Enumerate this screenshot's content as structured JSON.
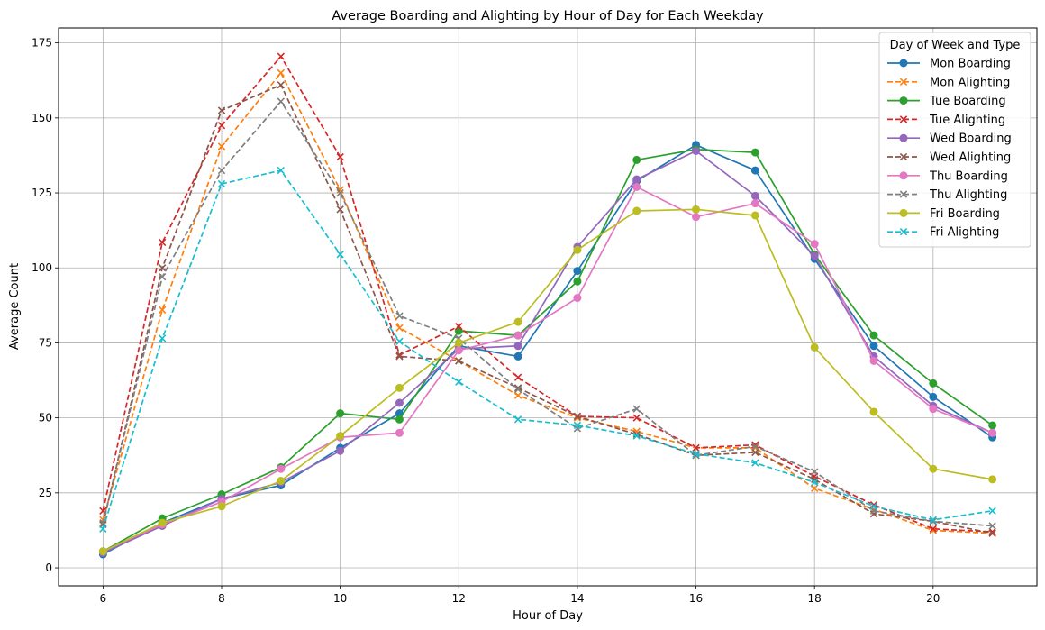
{
  "chart_data": {
    "type": "line",
    "title": "Average Boarding and Alighting by Hour of Day for Each Weekday",
    "xlabel": "Hour of Day",
    "ylabel": "Average Count",
    "xlim": [
      5.25,
      21.75
    ],
    "ylim": [
      -6,
      180
    ],
    "xticks": [
      6,
      8,
      10,
      12,
      14,
      16,
      18,
      20
    ],
    "yticks": [
      0,
      25,
      50,
      75,
      100,
      125,
      150,
      175
    ],
    "grid": true,
    "legend_title": "Day of Week and Type",
    "legend_position": "top-right",
    "x": [
      6,
      7,
      8,
      9,
      10,
      11,
      12,
      13,
      14,
      15,
      16,
      17,
      18,
      19,
      20,
      21
    ],
    "series": [
      {
        "name": "Mon Boarding",
        "color": "#1f77b4",
        "style": "solid",
        "marker": "circle",
        "values": [
          4.5,
          15,
          23,
          27.5,
          40,
          51.5,
          74,
          70.5,
          99,
          129,
          141,
          132.5,
          103,
          74,
          57,
          43.5
        ]
      },
      {
        "name": "Mon Alighting",
        "color": "#ff7f0e",
        "style": "dashed",
        "marker": "x",
        "values": [
          16,
          86,
          140.5,
          165,
          126,
          80,
          69,
          57.5,
          50,
          45.5,
          40,
          40,
          26.5,
          19.5,
          12.5,
          11.5
        ]
      },
      {
        "name": "Tue Boarding",
        "color": "#2ca02c",
        "style": "solid",
        "marker": "circle",
        "values": [
          5.5,
          16.5,
          24.5,
          33.5,
          51.5,
          49.5,
          79,
          77.5,
          95.5,
          136,
          139.5,
          138.5,
          104.5,
          77.5,
          61.5,
          47.5
        ]
      },
      {
        "name": "Tue Alighting",
        "color": "#d62728",
        "style": "dashed",
        "marker": "x",
        "values": [
          19,
          108.5,
          147.5,
          170.5,
          137,
          71,
          80.5,
          63.5,
          50.5,
          50,
          40,
          41,
          30.5,
          21,
          13,
          12
        ]
      },
      {
        "name": "Wed Boarding",
        "color": "#9467bd",
        "style": "solid",
        "marker": "circle",
        "values": [
          5,
          14,
          23,
          28.5,
          39,
          55,
          73,
          74,
          107,
          129.5,
          139,
          124,
          104,
          70.5,
          54,
          45
        ]
      },
      {
        "name": "Wed Alighting",
        "color": "#8c564b",
        "style": "dashed",
        "marker": "x",
        "values": [
          14.5,
          100,
          152.5,
          161,
          119.5,
          70.5,
          69,
          60,
          50.5,
          44.5,
          37.5,
          38.5,
          29.5,
          18,
          15.5,
          11.5
        ]
      },
      {
        "name": "Thu Boarding",
        "color": "#e377c2",
        "style": "solid",
        "marker": "circle",
        "values": [
          5.5,
          14.5,
          22,
          33,
          43.5,
          45,
          72.5,
          77.5,
          90,
          127,
          117,
          121.5,
          108,
          69,
          53,
          45
        ]
      },
      {
        "name": "Thu Alighting",
        "color": "#7f7f7f",
        "style": "dashed",
        "marker": "x",
        "values": [
          15,
          97,
          132.5,
          155.5,
          125,
          84,
          76.5,
          59.5,
          46.5,
          53,
          37.5,
          40.5,
          32,
          19,
          15.5,
          14
        ]
      },
      {
        "name": "Fri Boarding",
        "color": "#bcbd22",
        "style": "solid",
        "marker": "circle",
        "values": [
          5.5,
          15,
          20.5,
          29,
          44,
          60,
          75,
          82,
          106,
          119,
          119.5,
          117.5,
          73.5,
          52,
          33,
          29.5
        ]
      },
      {
        "name": "Fri Alighting",
        "color": "#17becf",
        "style": "dashed",
        "marker": "x",
        "values": [
          13,
          76.5,
          128,
          132.5,
          104.5,
          75.5,
          62,
          49.5,
          47.5,
          44,
          38,
          35,
          28.5,
          20.5,
          16,
          19
        ]
      }
    ]
  }
}
